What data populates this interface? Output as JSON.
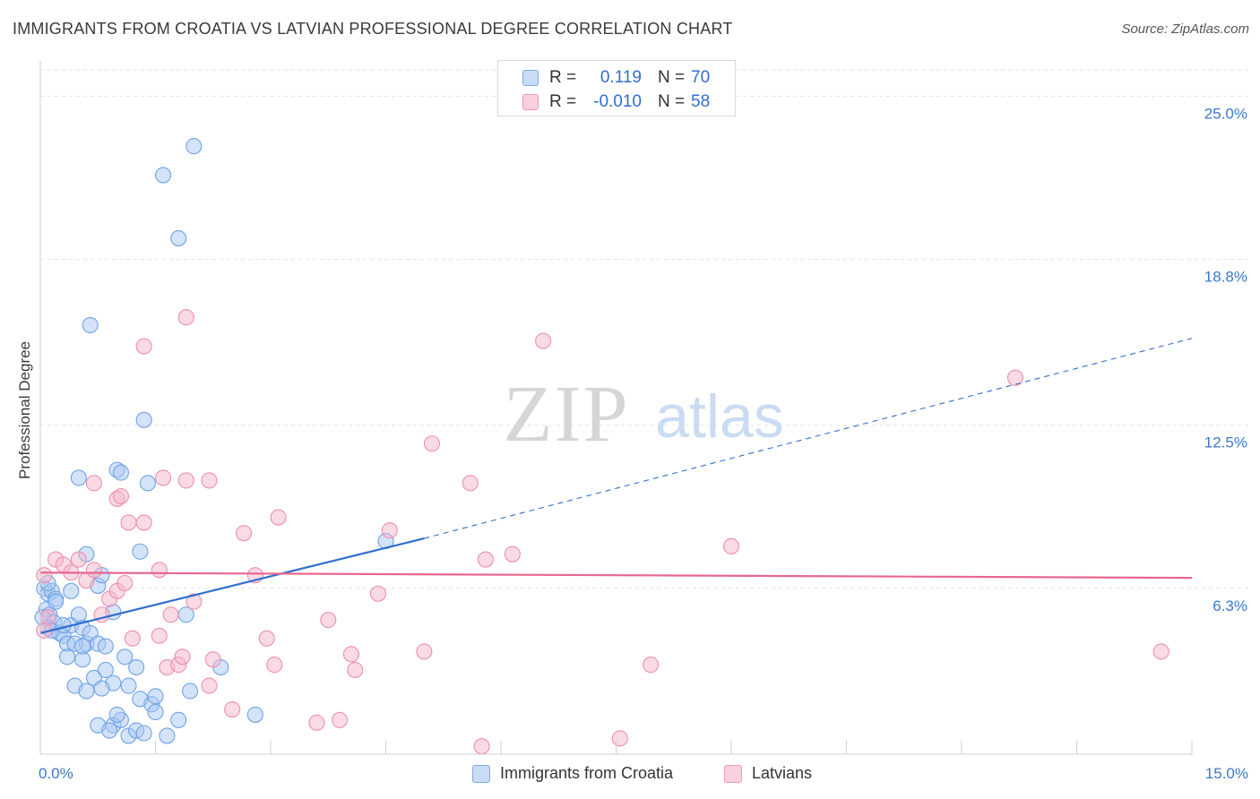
{
  "header": {
    "title": "IMMIGRANTS FROM CROATIA VS LATVIAN PROFESSIONAL DEGREE CORRELATION CHART",
    "source": "Source: ZipAtlas.com"
  },
  "watermark": {
    "zip": "ZIP",
    "atlas": "atlas"
  },
  "legend": {
    "rows": [
      {
        "swatch_color": "#a9c8f2",
        "r_label": "R =",
        "r_value": "0.119",
        "n_label": "N =",
        "n_value": "70"
      },
      {
        "swatch_color": "#f6b6c9",
        "r_label": "R =",
        "r_value": "-0.010",
        "n_label": "N =",
        "n_value": "58"
      }
    ]
  },
  "bottom_legend": {
    "items": [
      {
        "label": "Immigrants from Croatia",
        "color": "#a9c8f2"
      },
      {
        "label": "Latvians",
        "color": "#f6b6c9"
      }
    ]
  },
  "chart_data": {
    "type": "scatter",
    "title": "IMMIGRANTS FROM CROATIA VS LATVIAN PROFESSIONAL DEGREE CORRELATION CHART",
    "xlabel": "",
    "ylabel": "Professional Degree",
    "xlim": [
      0,
      15
    ],
    "ylim": [
      0,
      26
    ],
    "x_tick_labels": [
      "0.0%",
      "15.0%"
    ],
    "y_ticks": [
      6.3,
      12.5,
      18.8,
      25.0
    ],
    "y_tick_labels": [
      "6.3%",
      "12.5%",
      "18.8%",
      "25.0%"
    ],
    "grid": true,
    "legend_position": "top-center",
    "series": [
      {
        "name": "Immigrants from Croatia",
        "color": "#6fa3e8",
        "fill": "#a9c8f2",
        "trend": {
          "x": [
            0,
            5
          ],
          "y": [
            4.6,
            8.2
          ],
          "extended": {
            "x": [
              5,
              15
            ],
            "y": [
              8.2,
              15.8
            ]
          },
          "color": "#2f6fcf"
        },
        "points": [
          [
            0.05,
            6.3
          ],
          [
            0.1,
            6.1
          ],
          [
            0.15,
            6.2
          ],
          [
            0.2,
            5.9
          ],
          [
            0.08,
            5.5
          ],
          [
            0.12,
            5.3
          ],
          [
            0.03,
            5.2
          ],
          [
            0.18,
            5.0
          ],
          [
            0.1,
            4.8
          ],
          [
            0.25,
            4.6
          ],
          [
            0.3,
            4.5
          ],
          [
            0.35,
            4.2
          ],
          [
            0.4,
            4.9
          ],
          [
            0.5,
            5.3
          ],
          [
            0.55,
            4.8
          ],
          [
            0.6,
            4.2
          ],
          [
            0.45,
            4.2
          ],
          [
            0.65,
            4.6
          ],
          [
            0.75,
            4.2
          ],
          [
            0.85,
            4.1
          ],
          [
            0.35,
            3.7
          ],
          [
            0.55,
            3.6
          ],
          [
            0.7,
            2.9
          ],
          [
            0.85,
            3.2
          ],
          [
            0.95,
            2.7
          ],
          [
            1.1,
            3.7
          ],
          [
            1.25,
            3.3
          ],
          [
            0.45,
            2.6
          ],
          [
            0.8,
            2.5
          ],
          [
            1.15,
            2.6
          ],
          [
            1.3,
            2.1
          ],
          [
            1.45,
            1.9
          ],
          [
            1.5,
            2.2
          ],
          [
            1.95,
            2.4
          ],
          [
            2.35,
            3.3
          ],
          [
            1.9,
            5.3
          ],
          [
            0.5,
            10.5
          ],
          [
            1.0,
            10.8
          ],
          [
            1.05,
            10.7
          ],
          [
            1.4,
            10.3
          ],
          [
            0.65,
            16.3
          ],
          [
            1.35,
            12.7
          ],
          [
            1.6,
            22.0
          ],
          [
            2.0,
            23.1
          ],
          [
            1.8,
            19.6
          ],
          [
            0.6,
            7.6
          ],
          [
            0.75,
            6.4
          ],
          [
            0.8,
            6.8
          ],
          [
            0.95,
            5.4
          ],
          [
            1.3,
            7.7
          ],
          [
            0.75,
            1.1
          ],
          [
            0.95,
            1.1
          ],
          [
            1.05,
            1.3
          ],
          [
            1.15,
            0.7
          ],
          [
            1.25,
            0.9
          ],
          [
            1.35,
            0.8
          ],
          [
            1.65,
            0.7
          ],
          [
            1.8,
            1.3
          ],
          [
            2.8,
            1.5
          ],
          [
            4.5,
            8.1
          ],
          [
            0.2,
            5.8
          ],
          [
            0.15,
            4.7
          ],
          [
            0.3,
            4.9
          ],
          [
            0.55,
            4.1
          ],
          [
            0.6,
            2.4
          ],
          [
            1.0,
            1.5
          ],
          [
            0.9,
            0.9
          ],
          [
            0.1,
            6.5
          ],
          [
            1.5,
            1.6
          ],
          [
            0.4,
            6.2
          ]
        ]
      },
      {
        "name": "Latvians",
        "color": "#ee8fae",
        "fill": "#f6b6c9",
        "trend": {
          "x": [
            0,
            15
          ],
          "y": [
            6.9,
            6.7
          ],
          "color": "#e8678f"
        },
        "points": [
          [
            0.05,
            6.8
          ],
          [
            0.1,
            5.2
          ],
          [
            0.05,
            4.7
          ],
          [
            0.2,
            7.4
          ],
          [
            0.3,
            7.2
          ],
          [
            0.4,
            6.9
          ],
          [
            0.5,
            7.4
          ],
          [
            0.6,
            6.6
          ],
          [
            0.7,
            7.0
          ],
          [
            0.8,
            5.3
          ],
          [
            0.9,
            5.9
          ],
          [
            1.0,
            6.2
          ],
          [
            1.1,
            6.5
          ],
          [
            0.7,
            10.3
          ],
          [
            1.0,
            9.7
          ],
          [
            1.05,
            9.8
          ],
          [
            1.15,
            8.8
          ],
          [
            1.35,
            8.8
          ],
          [
            1.55,
            7.0
          ],
          [
            1.2,
            4.4
          ],
          [
            1.55,
            4.5
          ],
          [
            1.65,
            3.3
          ],
          [
            1.7,
            5.3
          ],
          [
            1.8,
            3.4
          ],
          [
            1.85,
            3.7
          ],
          [
            2.0,
            5.8
          ],
          [
            2.2,
            2.6
          ],
          [
            2.25,
            3.6
          ],
          [
            2.5,
            1.7
          ],
          [
            2.65,
            8.4
          ],
          [
            2.8,
            6.8
          ],
          [
            2.95,
            4.4
          ],
          [
            3.05,
            3.4
          ],
          [
            3.1,
            9.0
          ],
          [
            3.6,
            1.2
          ],
          [
            3.75,
            5.1
          ],
          [
            3.9,
            1.3
          ],
          [
            4.05,
            3.8
          ],
          [
            4.1,
            3.2
          ],
          [
            4.4,
            6.1
          ],
          [
            4.55,
            8.5
          ],
          [
            5.0,
            3.9
          ],
          [
            5.1,
            11.8
          ],
          [
            5.6,
            10.3
          ],
          [
            5.75,
            0.3
          ],
          [
            5.8,
            7.4
          ],
          [
            6.15,
            7.6
          ],
          [
            6.55,
            15.7
          ],
          [
            7.55,
            0.6
          ],
          [
            7.95,
            3.4
          ],
          [
            9.0,
            7.9
          ],
          [
            12.7,
            14.3
          ],
          [
            14.6,
            3.9
          ],
          [
            1.6,
            10.5
          ],
          [
            1.9,
            10.4
          ],
          [
            2.2,
            10.4
          ],
          [
            1.35,
            15.5
          ],
          [
            1.9,
            16.6
          ]
        ]
      }
    ]
  }
}
